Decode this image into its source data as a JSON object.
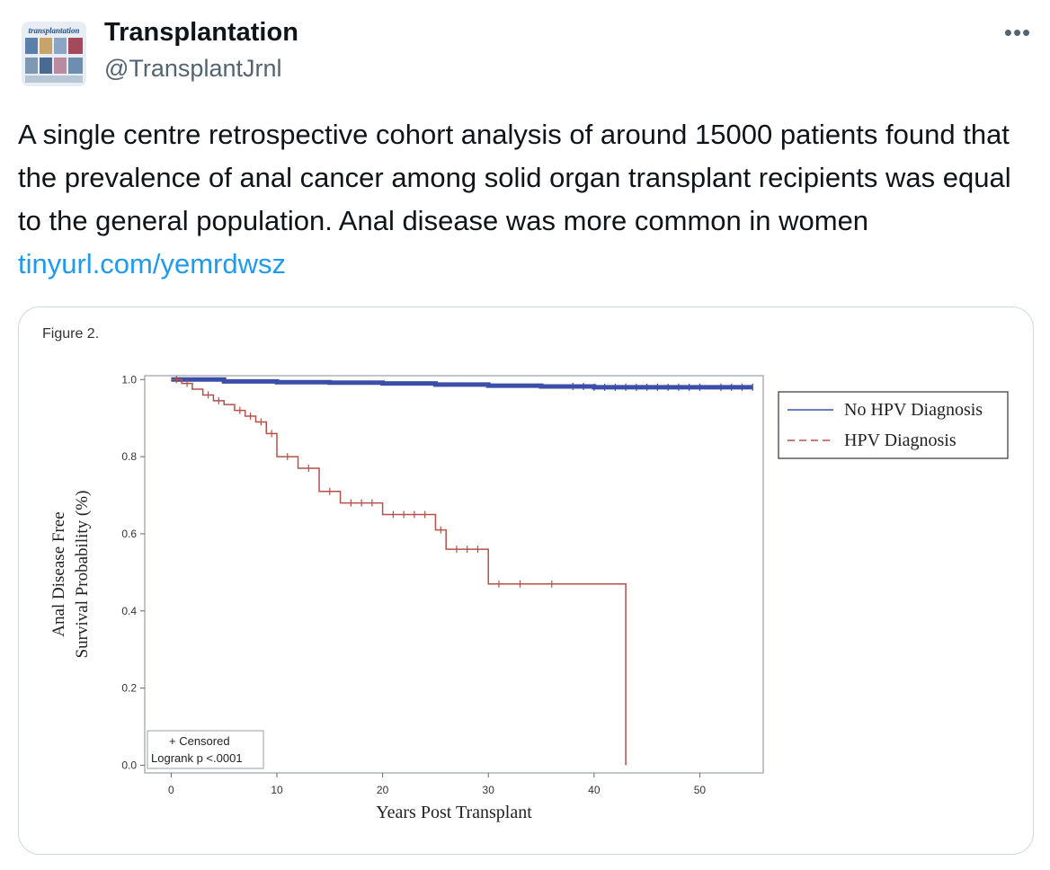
{
  "tweet": {
    "author_name": "Transplantation",
    "author_handle": "@TransplantJrnl",
    "avatar_text": "transplantation",
    "more_label": "•••",
    "text": "A single centre retrospective cohort analysis of around 15000 patients found that the prevalence of anal cancer among solid organ transplant recipients was equal to the general population. Anal disease was more common in women ",
    "link_text": "tinyurl.com/yemrdwsz"
  },
  "colors": {
    "link": "#1d9bf0",
    "no_hpv_line": "#3b4fa8",
    "hpv_line": "#b5504a"
  },
  "chart_data": {
    "type": "line",
    "figure_label": "Figure 2.",
    "xlabel": "Years Post Transplant",
    "ylabel_line1": "Anal Disease Free",
    "ylabel_line2": "Survival Probability (%)",
    "xlim": [
      -2.5,
      56
    ],
    "ylim": [
      -0.02,
      1.01
    ],
    "x_ticks": [
      0,
      10,
      20,
      30,
      40,
      50
    ],
    "y_ticks": [
      "0.0",
      "0.2",
      "0.4",
      "0.6",
      "0.8",
      "1.0"
    ],
    "legend_position": "right",
    "inset_legend": {
      "censored_label": "+ Censored",
      "logrank_label": "Logrank p <.0001"
    },
    "series": [
      {
        "name": "No HPV Diagnosis",
        "style": "solid",
        "steps": [
          [
            0,
            1.0
          ],
          [
            5,
            0.995
          ],
          [
            10,
            0.993
          ],
          [
            15,
            0.992
          ],
          [
            20,
            0.99
          ],
          [
            25,
            0.987
          ],
          [
            30,
            0.984
          ],
          [
            35,
            0.982
          ],
          [
            40,
            0.98
          ],
          [
            55,
            0.98
          ]
        ],
        "censored_x": [
          38,
          39,
          40,
          41,
          42,
          43,
          44,
          45,
          46,
          47,
          48,
          49,
          50,
          52,
          53,
          54,
          55
        ]
      },
      {
        "name": "HPV Diagnosis",
        "style": "dashed",
        "steps": [
          [
            0,
            1.0
          ],
          [
            1,
            0.99
          ],
          [
            2,
            0.975
          ],
          [
            3,
            0.96
          ],
          [
            4,
            0.945
          ],
          [
            5,
            0.935
          ],
          [
            6,
            0.92
          ],
          [
            7,
            0.905
          ],
          [
            8,
            0.89
          ],
          [
            9,
            0.86
          ],
          [
            10,
            0.8
          ],
          [
            12,
            0.77
          ],
          [
            14,
            0.71
          ],
          [
            16,
            0.68
          ],
          [
            20,
            0.65
          ],
          [
            25,
            0.61
          ],
          [
            26,
            0.56
          ],
          [
            30,
            0.47
          ],
          [
            43,
            0.47
          ],
          [
            43,
            0.0
          ]
        ],
        "censored_x": [
          0.5,
          1.5,
          3.5,
          4.5,
          6.5,
          7.5,
          8.5,
          9.5,
          11,
          13,
          15,
          17,
          18,
          19,
          21,
          22,
          23,
          24,
          25.5,
          27,
          28,
          29,
          31,
          33,
          36
        ]
      }
    ]
  }
}
